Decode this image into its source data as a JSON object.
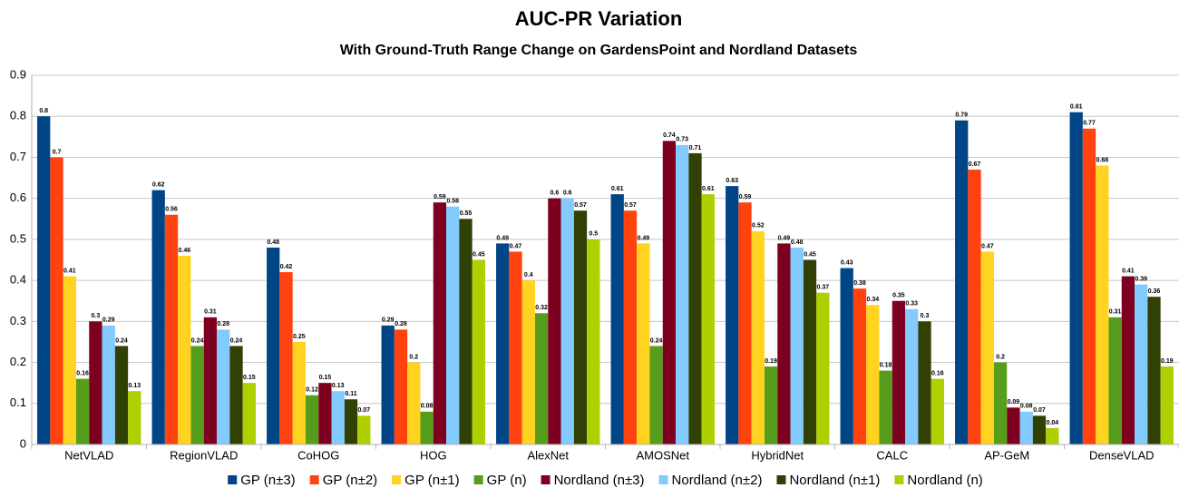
{
  "chart_data": {
    "type": "bar",
    "title": "AUC-PR Variation",
    "subtitle": "With Ground-Truth Range Change on GardensPoint and Nordland Datasets",
    "categories": [
      "NetVLAD",
      "RegionVLAD",
      "CoHOG",
      "HOG",
      "AlexNet",
      "AMOSNet",
      "HybridNet",
      "CALC",
      "AP-GeM",
      "DenseVLAD"
    ],
    "series": [
      {
        "name": "GP (n±3)",
        "color": "#004586",
        "values": [
          0.8,
          0.62,
          0.48,
          0.29,
          0.49,
          0.61,
          0.63,
          0.43,
          0.79,
          0.81
        ]
      },
      {
        "name": "GP (n±2)",
        "color": "#ff420e",
        "values": [
          0.7,
          0.56,
          0.42,
          0.28,
          0.47,
          0.57,
          0.59,
          0.38,
          0.67,
          0.77
        ]
      },
      {
        "name": "GP (n±1)",
        "color": "#ffd320",
        "values": [
          0.41,
          0.46,
          0.25,
          0.2,
          0.4,
          0.49,
          0.52,
          0.34,
          0.47,
          0.68
        ]
      },
      {
        "name": "GP (n)",
        "color": "#579d1c",
        "values": [
          0.16,
          0.24,
          0.12,
          0.08,
          0.32,
          0.24,
          0.19,
          0.18,
          0.2,
          0.31
        ]
      },
      {
        "name": "Nordland (n±3)",
        "color": "#7e0021",
        "values": [
          0.3,
          0.31,
          0.15,
          0.59,
          0.6,
          0.74,
          0.49,
          0.35,
          0.09,
          0.41
        ]
      },
      {
        "name": "Nordland (n±2)",
        "color": "#83caff",
        "values": [
          0.29,
          0.28,
          0.13,
          0.58,
          0.6,
          0.73,
          0.48,
          0.33,
          0.08,
          0.39
        ]
      },
      {
        "name": "Nordland (n±1)",
        "color": "#314004",
        "values": [
          0.24,
          0.24,
          0.11,
          0.55,
          0.57,
          0.71,
          0.45,
          0.3,
          0.07,
          0.36
        ]
      },
      {
        "name": "Nordland (n)",
        "color": "#aecf00",
        "values": [
          0.13,
          0.15,
          0.07,
          0.45,
          0.5,
          0.61,
          0.37,
          0.16,
          0.04,
          0.19
        ]
      }
    ],
    "ylim": [
      0,
      0.9
    ],
    "yticks": [
      0,
      0.1,
      0.2,
      0.3,
      0.4,
      0.5,
      0.6,
      0.7,
      0.8,
      0.9
    ],
    "grid": true,
    "legend": "bottom"
  }
}
